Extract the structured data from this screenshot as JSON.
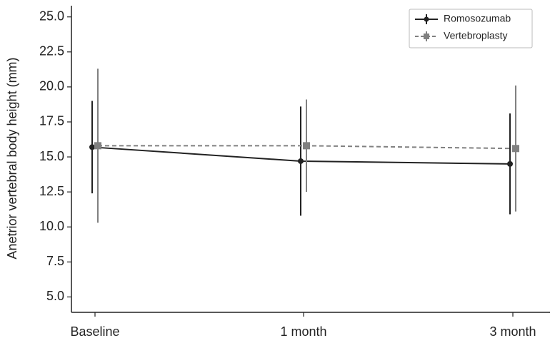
{
  "chart_data": {
    "type": "line",
    "y_label": "Anetrior vertebral body height (mm)",
    "categories": [
      "Baseline",
      "1 month",
      "3 month"
    ],
    "series": [
      {
        "name": "Romosozumab",
        "color": "#222222",
        "dash": "solid",
        "marker": "circle",
        "values": [
          15.7,
          14.7,
          14.5
        ],
        "errors": [
          3.3,
          3.9,
          3.6
        ]
      },
      {
        "name": "Vertebroplasty",
        "color": "#808080",
        "dash": "dashed",
        "marker": "square",
        "values": [
          15.8,
          15.8,
          15.6
        ],
        "errors": [
          5.5,
          3.3,
          4.5
        ]
      }
    ],
    "ylim": [
      3.9,
      25.8
    ],
    "yticks": [
      {
        "value": 5,
        "label": "5.0"
      },
      {
        "value": 7.5,
        "label": "7.5"
      },
      {
        "value": 10,
        "label": "10.0"
      },
      {
        "value": 12.5,
        "label": "12.5"
      },
      {
        "value": 15,
        "label": "15.0"
      },
      {
        "value": 17.5,
        "label": "17.5"
      },
      {
        "value": 20,
        "label": "20.0"
      },
      {
        "value": 22.5,
        "label": "22.5"
      },
      {
        "value": 25,
        "label": "25.0"
      }
    ],
    "grid": false,
    "legend": "upper right"
  }
}
